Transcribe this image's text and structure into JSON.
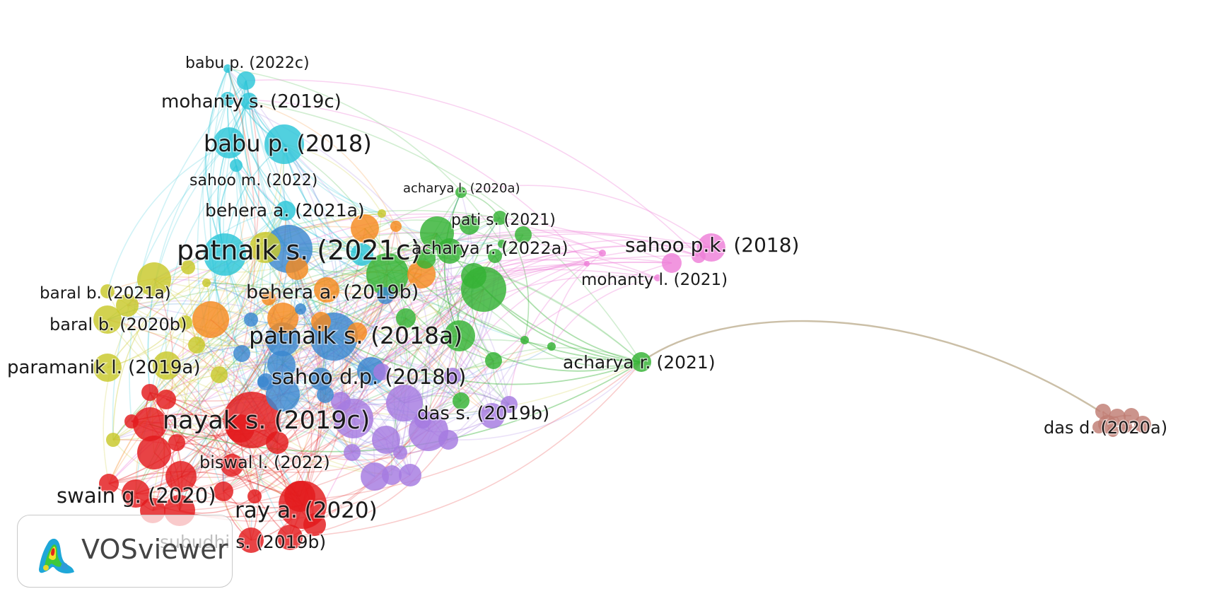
{
  "app": {
    "name": "VOSviewer"
  },
  "clusters": [
    {
      "id": "red",
      "color": "#e31a1c"
    },
    {
      "id": "yellow",
      "color": "#c8c82a"
    },
    {
      "id": "cyan",
      "color": "#2bc6d8"
    },
    {
      "id": "orange",
      "color": "#f58a1f"
    },
    {
      "id": "blue",
      "color": "#3a87d0"
    },
    {
      "id": "green",
      "color": "#33b233"
    },
    {
      "id": "purple",
      "color": "#a57ae0"
    },
    {
      "id": "pink",
      "color": "#ee7fd8"
    },
    {
      "id": "brown",
      "color": "#c07d73"
    }
  ],
  "labels": [
    {
      "text": "babu p. (2022c)",
      "cluster": "cyan"
    },
    {
      "text": "mohanty s. (2019c)",
      "cluster": "cyan"
    },
    {
      "text": "babu p. (2018)",
      "cluster": "cyan"
    },
    {
      "text": "sahoo m. (2022)",
      "cluster": "cyan"
    },
    {
      "text": "behera a. (2021a)",
      "cluster": "cyan"
    },
    {
      "text": "patnaik s. (2021c)",
      "cluster": "cyan"
    },
    {
      "text": "acharya l. (2020a)",
      "cluster": "green"
    },
    {
      "text": "pati s. (2021)",
      "cluster": "green"
    },
    {
      "text": "acharya r. (2022a)",
      "cluster": "green"
    },
    {
      "text": "sahoo p.k. (2018)",
      "cluster": "pink"
    },
    {
      "text": "mohanty l. (2021)",
      "cluster": "pink"
    },
    {
      "text": "baral b. (2021a)",
      "cluster": "yellow"
    },
    {
      "text": "behera a. (2019b)",
      "cluster": "orange"
    },
    {
      "text": "baral b. (2020b)",
      "cluster": "yellow"
    },
    {
      "text": "patnaik s. (2018a)",
      "cluster": "blue"
    },
    {
      "text": "acharya r. (2021)",
      "cluster": "green"
    },
    {
      "text": "paramanik l. (2019a)",
      "cluster": "yellow"
    },
    {
      "text": "sahoo d.p. (2018b)",
      "cluster": "blue"
    },
    {
      "text": "das s. (2019b)",
      "cluster": "purple"
    },
    {
      "text": "das d. (2020a)",
      "cluster": "brown"
    },
    {
      "text": "nayak s. (2019c)",
      "cluster": "red"
    },
    {
      "text": "biswal l. (2022)",
      "cluster": "red"
    },
    {
      "text": "swain g. (2020)",
      "cluster": "red"
    },
    {
      "text": "ray a. (2020)",
      "cluster": "red"
    },
    {
      "text": "subudhi s. (2019b)",
      "cluster": "red"
    }
  ]
}
